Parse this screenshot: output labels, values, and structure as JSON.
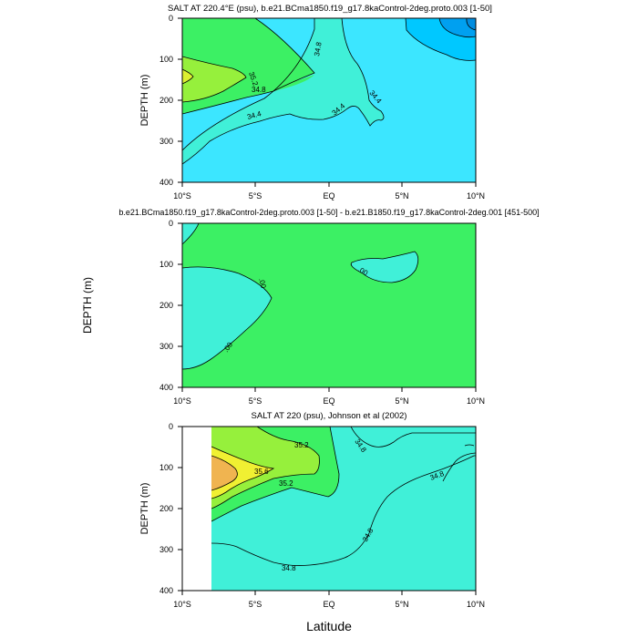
{
  "figure": {
    "xlabel": "Latitude",
    "ylabel": "DEPTH (m)"
  },
  "chart_data": [
    {
      "type": "contour",
      "title": "SALT AT 220.4°E (psu), b.e21.BCma1850.f19_g17.8kaControl-2deg.proto.003 [1-50]",
      "xlabel": "",
      "ylabel": "DEPTH (m)",
      "xlim": [
        -10,
        10
      ],
      "ylim": [
        400,
        0
      ],
      "x_ticks": [
        "10°S",
        "5°S",
        "EQ",
        "5°N",
        "10°N"
      ],
      "y_ticks": [
        "0",
        "100",
        "200",
        "300",
        "400"
      ],
      "contour_labels": [
        "35.2",
        "34.8",
        "34.8",
        "34.4",
        "34.4",
        "34.4"
      ],
      "colors": {
        "fresh_deep": "#00a0f0",
        "fresh": "#00c8ff",
        "base": "#3ce6ff",
        "mid": "#40f0d8",
        "green": "#3cf064",
        "salty": "#96f03c",
        "saltiest": "#dcf032"
      }
    },
    {
      "type": "contour",
      "title": "b.e21.BCma1850.f19_g17.8kaControl-2deg.proto.003 [1-50] - b.e21.B1850.f19_g17.8kaControl-2deg.001 [451-500]",
      "xlabel": "",
      "ylabel": "DEPTH (m)",
      "xlim": [
        -10,
        10
      ],
      "ylim": [
        400,
        0
      ],
      "x_ticks": [
        "10°S",
        "5°S",
        "EQ",
        "5°N",
        "10°N"
      ],
      "y_ticks": [
        "0",
        "100",
        "200",
        "300",
        "400"
      ],
      "contour_labels": [
        ".00",
        ".00",
        ".00"
      ],
      "colors": {
        "base": "#3cf064",
        "fresher": "#40f0d8"
      }
    },
    {
      "type": "contour",
      "title": "SALT AT 220 (psu), Johnson et al (2002)",
      "xlabel": "Latitude",
      "ylabel": "DEPTH (m)",
      "xlim": [
        -10,
        10
      ],
      "ylim": [
        400,
        0
      ],
      "x_ticks": [
        "10°S",
        "5°S",
        "EQ",
        "5°N",
        "10°N"
      ],
      "y_ticks": [
        "0",
        "100",
        "200",
        "300",
        "400"
      ],
      "contour_labels": [
        "35.2",
        "35.6",
        "35.2",
        "34.8",
        "34.8",
        "34.8",
        "34.8"
      ],
      "colors": {
        "base": "#40f0d8",
        "green": "#3cf064",
        "salty": "#96f03c",
        "yellow": "#f0f032",
        "orange": "#f0b450"
      }
    }
  ]
}
